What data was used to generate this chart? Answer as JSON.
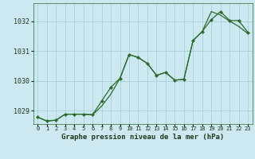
{
  "title": "Graphe pression niveau de la mer (hPa)",
  "background_color": "#cce8f0",
  "grid_color": "#aad4dc",
  "line_color": "#2d6a2d",
  "xlim": [
    -0.5,
    23.5
  ],
  "ylim": [
    1028.55,
    1032.6
  ],
  "yticks": [
    1029,
    1030,
    1031,
    1032
  ],
  "xticks": [
    0,
    1,
    2,
    3,
    4,
    5,
    6,
    7,
    8,
    9,
    10,
    11,
    12,
    13,
    14,
    15,
    16,
    17,
    18,
    19,
    20,
    21,
    22,
    23
  ],
  "series1_x": [
    0,
    1,
    2,
    3,
    4,
    5,
    6,
    7,
    8,
    9,
    10,
    11,
    12,
    13,
    14,
    15,
    16,
    17,
    18,
    19,
    20,
    21,
    22,
    23
  ],
  "series1_y": [
    1028.78,
    1028.65,
    1028.68,
    1028.88,
    1028.88,
    1028.88,
    1028.86,
    1029.32,
    1029.78,
    1030.08,
    1030.88,
    1030.78,
    1030.58,
    1030.18,
    1030.28,
    1030.02,
    1030.05,
    1031.35,
    1031.65,
    1032.05,
    1032.32,
    1032.02,
    1032.02,
    1031.62
  ],
  "series2_x": [
    0,
    1,
    2,
    3,
    4,
    5,
    6,
    7,
    8,
    9,
    10,
    11,
    12,
    13,
    14,
    15,
    16,
    17,
    18,
    19,
    20,
    21,
    22,
    23
  ],
  "series2_y": [
    1028.78,
    1028.65,
    1028.68,
    1028.88,
    1028.88,
    1028.88,
    1028.86,
    1029.15,
    1029.55,
    1030.08,
    1030.88,
    1030.78,
    1030.58,
    1030.18,
    1030.28,
    1030.02,
    1030.05,
    1031.35,
    1031.65,
    1032.32,
    1032.2,
    1032.0,
    1031.82,
    1031.58
  ]
}
